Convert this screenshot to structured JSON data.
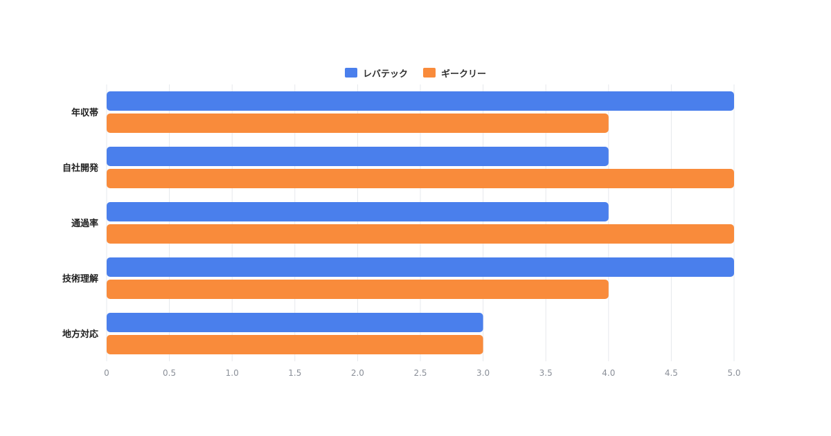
{
  "chart_data": {
    "type": "bar",
    "orientation": "horizontal",
    "categories": [
      "年収帯",
      "自社開発",
      "通過率",
      "技術理解",
      "地方対応"
    ],
    "series": [
      {
        "name": "レバテック",
        "color": "#4a7fec",
        "values": [
          5,
          4,
          4,
          5,
          3
        ]
      },
      {
        "name": "ギークリー",
        "color": "#f98b3b",
        "values": [
          4,
          5,
          5,
          4,
          3
        ]
      }
    ],
    "xlim": [
      0,
      5
    ],
    "x_ticks": [
      "0",
      "0.5",
      "1.0",
      "1.5",
      "2.0",
      "2.5",
      "3.0",
      "3.5",
      "4.0",
      "4.5",
      "5.0"
    ],
    "grid": true,
    "legend_position": "top-center"
  }
}
